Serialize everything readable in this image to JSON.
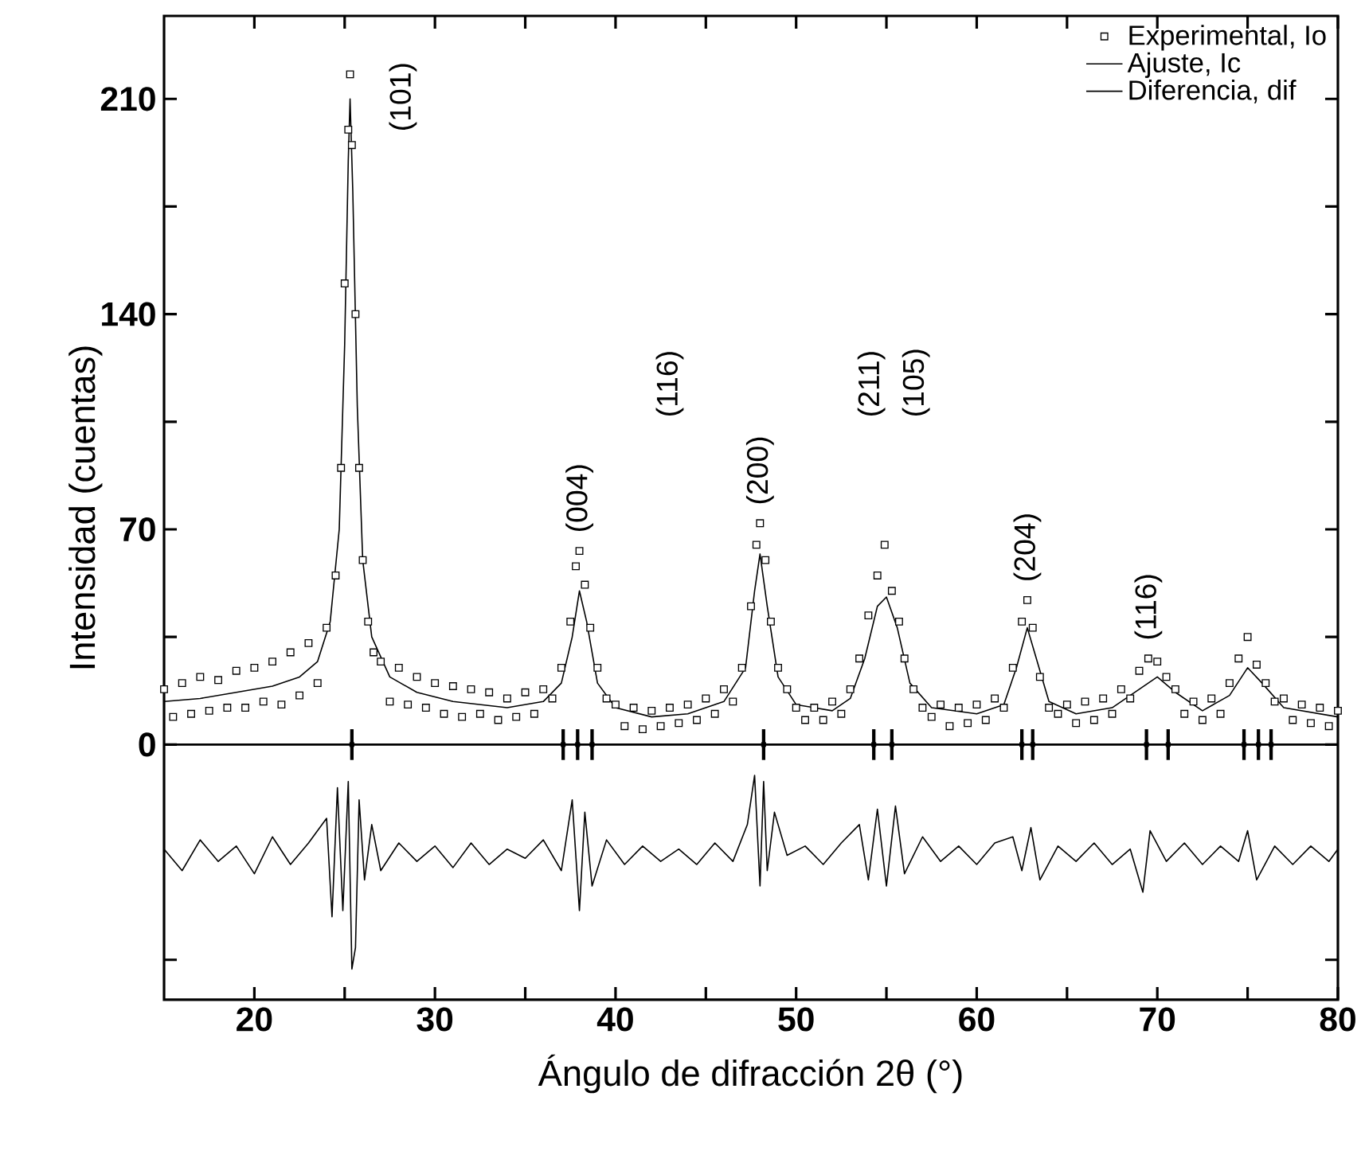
{
  "chart_data": {
    "type": "scatter",
    "xlabel": "Ángulo de difracción 2θ (°)",
    "ylabel": "Intensidad (cuentas)",
    "xlim": [
      15,
      80
    ],
    "xticks": [
      20,
      {
        "value": 25,
        "label": null
      },
      30,
      {
        "value": 35,
        "label": null
      },
      40,
      {
        "value": 45,
        "label": null
      },
      50,
      {
        "value": 55,
        "label": null
      },
      60,
      {
        "value": 65,
        "label": null
      },
      70,
      {
        "value": 75,
        "label": null
      },
      80
    ],
    "ylim": [
      -83,
      237
    ],
    "yticks": [
      {
        "value": -70,
        "label": null
      },
      0,
      {
        "value": 35,
        "label": null
      },
      70,
      {
        "value": 105,
        "label": null
      },
      140,
      {
        "value": 175,
        "label": null
      },
      210
    ],
    "legend": "top right",
    "ref_lines": [
      {
        "axis": "y",
        "value": 0,
        "color": "#000000"
      }
    ],
    "annotations": [
      {
        "text": "(101)",
        "x": 25.3,
        "y": 218
      },
      {
        "text": "(004)",
        "x": 38.0,
        "y": 63
      },
      "(116)",
      {
        "text": "(200)",
        "x": 48.0,
        "y": 72
      },
      "(211)",
      "(105)",
      {
        "text": "(204)",
        "x": 62.8,
        "y": 47
      },
      {
        "text": "(116)",
        "x": 69.5,
        "y": 28
      }
    ],
    "series": [
      {
        "name": "Experimental, Io",
        "marker": "square",
        "color": "#000000",
        "x": [
          15,
          15.5,
          16,
          16.5,
          17,
          17.5,
          18,
          18.5,
          19,
          19.5,
          20,
          20.5,
          21,
          21.5,
          22,
          22.5,
          23,
          23.5,
          24,
          24.5,
          24.8,
          25.0,
          25.2,
          25.3,
          25.4,
          25.6,
          25.8,
          26.0,
          26.3,
          26.6,
          27,
          27.5,
          28,
          28.5,
          29,
          29.5,
          30,
          30.5,
          31,
          31.5,
          32,
          32.5,
          33,
          33.5,
          34,
          34.5,
          35,
          35.5,
          36,
          36.5,
          37,
          37.5,
          37.8,
          38.0,
          38.3,
          38.6,
          39,
          39.5,
          40,
          40.5,
          41,
          41.5,
          42,
          42.5,
          43,
          43.5,
          44,
          44.5,
          45,
          45.5,
          46,
          46.5,
          47,
          47.5,
          47.8,
          48.0,
          48.3,
          48.6,
          49,
          49.5,
          50,
          50.5,
          51,
          51.5,
          52,
          52.5,
          53,
          53.5,
          54,
          54.5,
          54.9,
          55.3,
          55.7,
          56,
          56.5,
          57,
          57.5,
          58,
          58.5,
          59,
          59.5,
          60,
          60.5,
          61,
          61.5,
          62,
          62.5,
          62.8,
          63.1,
          63.5,
          64,
          64.5,
          65,
          65.5,
          66,
          66.5,
          67,
          67.5,
          68,
          68.5,
          69,
          69.5,
          70,
          70.5,
          71,
          71.5,
          72,
          72.5,
          73,
          73.5,
          74,
          74.5,
          75,
          75.5,
          76,
          76.5,
          77,
          77.5,
          78,
          78.5,
          79,
          79.5,
          80
        ],
        "values": [
          18,
          9,
          20,
          10,
          22,
          11,
          21,
          12,
          24,
          12,
          25,
          14,
          27,
          13,
          30,
          16,
          33,
          20,
          38,
          55,
          90,
          150,
          200,
          218,
          195,
          140,
          90,
          60,
          40,
          30,
          27,
          14,
          25,
          13,
          22,
          12,
          20,
          10,
          19,
          9,
          18,
          10,
          17,
          8,
          15,
          9,
          17,
          10,
          18,
          15,
          25,
          40,
          58,
          63,
          52,
          38,
          25,
          15,
          13,
          6,
          12,
          5,
          11,
          6,
          12,
          7,
          13,
          8,
          15,
          10,
          18,
          14,
          25,
          45,
          65,
          72,
          60,
          40,
          25,
          18,
          12,
          8,
          12,
          8,
          14,
          10,
          18,
          28,
          42,
          55,
          65,
          50,
          40,
          28,
          18,
          12,
          9,
          13,
          6,
          12,
          7,
          13,
          8,
          15,
          12,
          25,
          40,
          47,
          38,
          22,
          12,
          10,
          13,
          7,
          14,
          8,
          15,
          10,
          18,
          15,
          24,
          28,
          27,
          22,
          18,
          10,
          14,
          8,
          15,
          10,
          20,
          28,
          35,
          26,
          20,
          14,
          15,
          8,
          13,
          7,
          12,
          6,
          11
        ]
      },
      {
        "name": "Ajuste, Ic",
        "type": "line",
        "marker": "none",
        "color": "#000000",
        "x": [
          15,
          17,
          19,
          21,
          22.5,
          23.5,
          24.2,
          24.7,
          25.0,
          25.2,
          25.3,
          25.45,
          25.7,
          26.0,
          26.5,
          27.5,
          29,
          31,
          34,
          36,
          37,
          37.6,
          38.0,
          38.4,
          39,
          40,
          42,
          44,
          46,
          47.2,
          47.7,
          48.0,
          48.4,
          49,
          50,
          52,
          53,
          53.8,
          54.5,
          55.0,
          55.6,
          56.3,
          57.5,
          60,
          61.5,
          62.2,
          62.8,
          63.3,
          64,
          65.5,
          67.5,
          69,
          70,
          71,
          72.5,
          74,
          75,
          75.8,
          77,
          80
        ],
        "values": [
          14,
          15,
          17,
          19,
          22,
          27,
          40,
          70,
          130,
          190,
          210,
          180,
          110,
          60,
          35,
          22,
          17,
          14,
          12,
          14,
          20,
          35,
          50,
          40,
          20,
          12,
          9,
          10,
          14,
          25,
          50,
          62,
          45,
          22,
          13,
          11,
          15,
          28,
          45,
          48,
          38,
          20,
          12,
          10,
          13,
          25,
          38,
          28,
          14,
          10,
          12,
          18,
          22,
          17,
          11,
          16,
          25,
          20,
          12,
          9
        ]
      },
      {
        "name": "Diferencia, dif",
        "type": "line",
        "marker": "none",
        "color": "#000000",
        "x": [
          15,
          16,
          17,
          18,
          19,
          20,
          21,
          22,
          23,
          24,
          24.3,
          24.6,
          24.9,
          25.2,
          25.4,
          25.6,
          25.8,
          26.1,
          26.5,
          27,
          28,
          29,
          30,
          31,
          32,
          33,
          34,
          35,
          36,
          37,
          37.6,
          38.0,
          38.3,
          38.7,
          39.5,
          40.5,
          41.5,
          42.5,
          43.5,
          44.5,
          45.5,
          46.5,
          47.3,
          47.7,
          48.0,
          48.2,
          48.4,
          48.8,
          49.5,
          50.5,
          51.5,
          52.5,
          53.5,
          54,
          54.5,
          55,
          55.5,
          56,
          57,
          58,
          59,
          60,
          61,
          62,
          62.5,
          63,
          63.5,
          64.5,
          65.5,
          66.5,
          67.5,
          68.5,
          69.2,
          69.6,
          70.5,
          71.5,
          72.5,
          73.5,
          74.5,
          75,
          75.5,
          76.5,
          77.5,
          78.5,
          79.5,
          80
        ],
        "values": [
          -34,
          -41,
          -31,
          -38,
          -33,
          -42,
          -30,
          -39,
          -32,
          -24,
          -56,
          -14,
          -54,
          -12,
          -73,
          -66,
          -18,
          -44,
          -26,
          -41,
          -32,
          -38,
          -33,
          -40,
          -32,
          -39,
          -34,
          -37,
          -31,
          -41,
          -18,
          -54,
          -22,
          -46,
          -31,
          -39,
          -33,
          -38,
          -34,
          -39,
          -32,
          -38,
          -26,
          -10,
          -46,
          -12,
          -41,
          -22,
          -36,
          -33,
          -39,
          -32,
          -26,
          -44,
          -21,
          -46,
          -20,
          -42,
          -30,
          -38,
          -33,
          -39,
          -32,
          -30,
          -41,
          -27,
          -44,
          -33,
          -38,
          -32,
          -39,
          -34,
          -48,
          -28,
          -38,
          -32,
          -39,
          -33,
          -38,
          -28,
          -44,
          -33,
          -39,
          -33,
          -38,
          -34
        ]
      },
      {
        "marker": "square",
        "color": "#000000",
        "x": [
          25.4,
          37.1,
          37.9,
          38.7,
          48.2,
          54.3,
          55.3,
          62.5,
          63.1,
          69.4,
          70.6,
          74.8,
          75.6,
          76.3
        ],
        "values": [
          0,
          0,
          0,
          0,
          0,
          0,
          0,
          0,
          0,
          0,
          0,
          0,
          0,
          0
        ],
        "errors": [
          5,
          5,
          5,
          5,
          5,
          5,
          5,
          5,
          5,
          5,
          5,
          5,
          5,
          5
        ]
      }
    ]
  }
}
